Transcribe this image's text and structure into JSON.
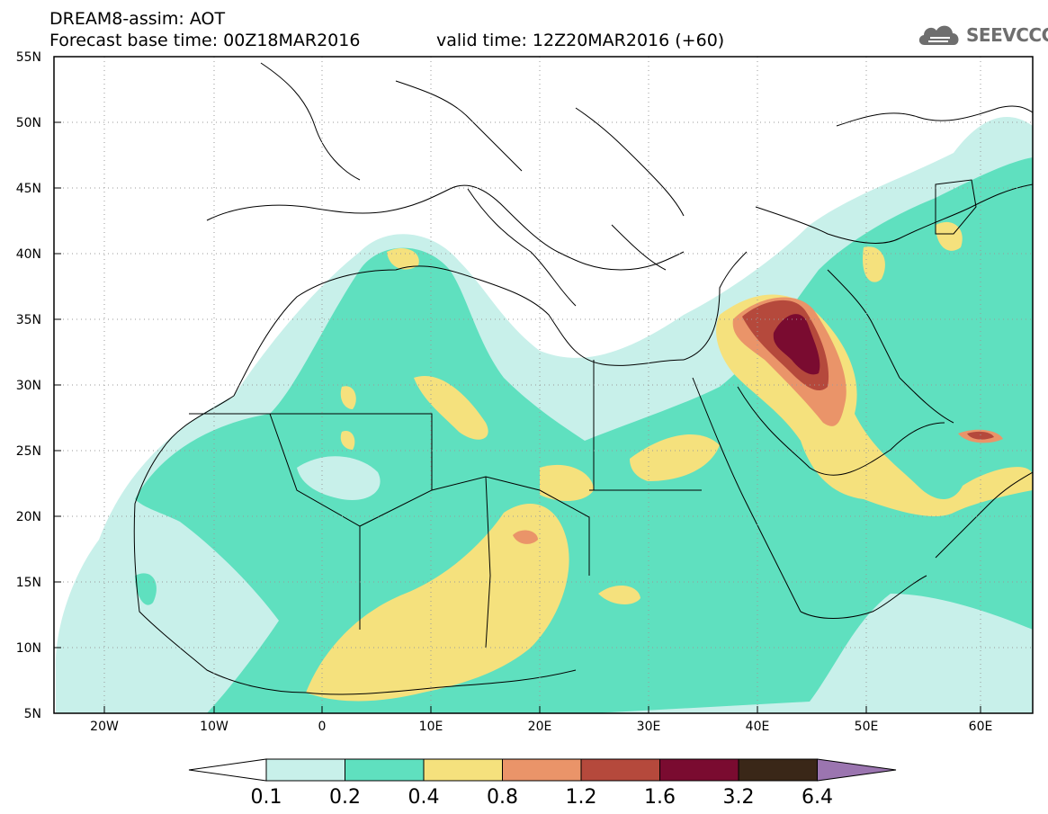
{
  "header": {
    "title": "DREAM8-assim: AOT",
    "base_time": "Forecast base time: 00Z18MAR2016",
    "valid_time": "valid time: 12Z20MAR2016 (+60)"
  },
  "logo": {
    "text": "SEEVCCC",
    "icon": "cloud-icon"
  },
  "map": {
    "lat_range": [
      5,
      55
    ],
    "lon_range": [
      -25,
      65
    ],
    "lat_labels": [
      "55N",
      "50N",
      "45N",
      "40N",
      "35N",
      "30N",
      "25N",
      "20N",
      "15N",
      "10N",
      "5N"
    ],
    "lon_labels": [
      "20W",
      "10W",
      "0",
      "10E",
      "20E",
      "30E",
      "40E",
      "50E",
      "60E"
    ]
  },
  "colorbar": {
    "labels": [
      "0.1",
      "0.2",
      "0.4",
      "0.8",
      "1.2",
      "1.6",
      "3.2",
      "6.4"
    ],
    "colors": [
      "#c8f0ea",
      "#5fe0bf",
      "#f5e17d",
      "#ea9469",
      "#b5493c",
      "#7a0b30",
      "#3a2718",
      "#9b75b0"
    ]
  }
}
